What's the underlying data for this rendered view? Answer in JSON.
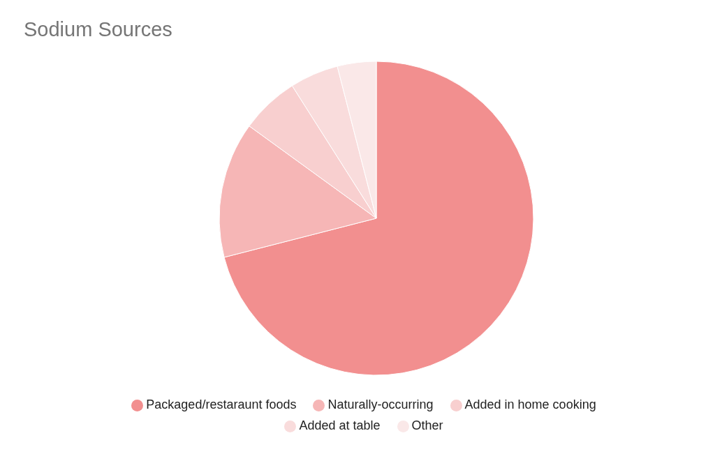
{
  "chart_data": {
    "type": "pie",
    "title": "Sodium Sources",
    "categories": [
      "Packaged/restaraunt foods",
      "Naturally-occurring",
      "Added in home cooking",
      "Added at table",
      "Other"
    ],
    "values": [
      71,
      14,
      6,
      5,
      4
    ],
    "colors": [
      "#f28f8f",
      "#f6b6b6",
      "#f8cfcf",
      "#f9dcdc",
      "#fae8e8"
    ],
    "legend": "bottom"
  }
}
